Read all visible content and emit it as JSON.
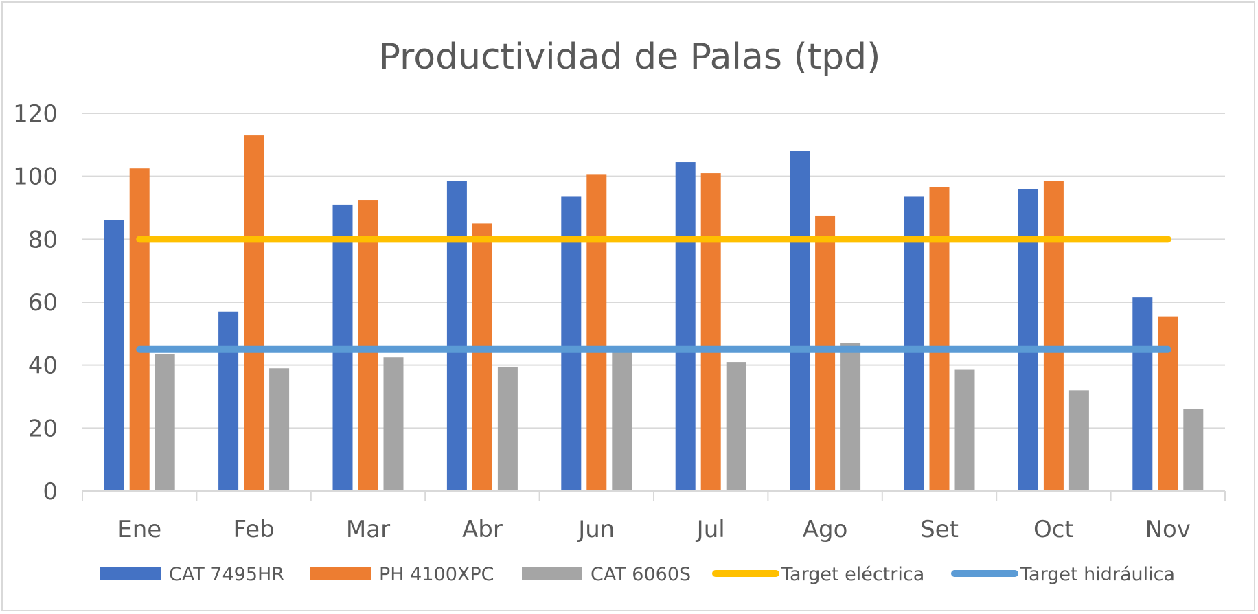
{
  "chart_data": {
    "type": "bar",
    "title": "Productividad de Palas (tpd)",
    "xlabel": "",
    "ylabel": "",
    "ylim": [
      0,
      120
    ],
    "yticks": [
      0,
      20,
      40,
      60,
      80,
      100,
      120
    ],
    "grid": true,
    "legend_position": "bottom",
    "categories": [
      "Ene",
      "Feb",
      "Mar",
      "Abr",
      "Jun",
      "Jul",
      "Ago",
      "Set",
      "Oct",
      "Nov"
    ],
    "series": [
      {
        "name": "CAT 7495HR",
        "color": "#4472c4",
        "values": [
          86,
          57,
          91,
          98.5,
          93.5,
          104.5,
          108,
          93.5,
          96,
          61.5
        ]
      },
      {
        "name": "PH 4100XPC",
        "color": "#ed7d31",
        "values": [
          102.5,
          113,
          92.5,
          85,
          100.5,
          101,
          87.5,
          96.5,
          98.5,
          55.5
        ]
      },
      {
        "name": "CAT 6060S",
        "color": "#a5a5a5",
        "values": [
          43.5,
          39,
          42.5,
          39.5,
          44,
          41,
          47,
          38.5,
          32,
          26
        ]
      }
    ],
    "lines": [
      {
        "name": "Target eléctrica",
        "color": "#ffc000",
        "value": 80
      },
      {
        "name": "Target hidráulica",
        "color": "#5b9bd5",
        "value": 45
      }
    ]
  }
}
